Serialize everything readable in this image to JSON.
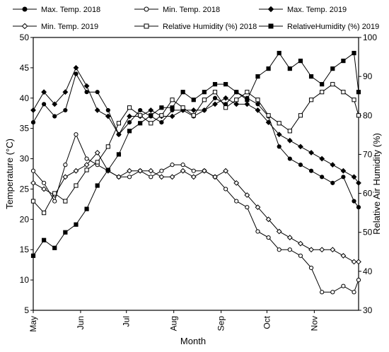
{
  "chart_data": {
    "type": "line",
    "xlabel": "Month",
    "ylabel": "Temperature (°C)",
    "y2label": "Relative Air Humidity (%)",
    "ylim": [
      5,
      50
    ],
    "y2lim": [
      30,
      100
    ],
    "yticks": [
      5,
      10,
      15,
      20,
      25,
      30,
      35,
      40,
      45,
      50
    ],
    "y2ticks": [
      30,
      40,
      50,
      60,
      70,
      80,
      90,
      100
    ],
    "xlim": [
      1,
      214
    ],
    "xticks": [
      {
        "label": "May",
        "day": 1
      },
      {
        "label": "Jun",
        "day": 32
      },
      {
        "label": "Jul",
        "day": 62
      },
      {
        "label": "Aug",
        "day": 93
      },
      {
        "label": "Sep",
        "day": 124
      },
      {
        "label": "Oct",
        "day": 154
      },
      {
        "label": "Nov",
        "day": 185
      }
    ],
    "grid": false,
    "legend_position": "top",
    "series": [
      {
        "name": "Max. Temp. 2018",
        "axis": "left",
        "marker": "circle-filled",
        "days": [
          1,
          8,
          15,
          22,
          29,
          36,
          43,
          50,
          57,
          64,
          71,
          78,
          85,
          92,
          99,
          106,
          113,
          120,
          127,
          134,
          141,
          148,
          155,
          162,
          169,
          176,
          183,
          190,
          197,
          204,
          211,
          214
        ],
        "values": [
          36,
          39,
          37,
          38,
          44,
          41,
          41,
          38,
          34,
          36,
          38,
          37,
          36,
          38,
          38,
          37,
          38,
          40,
          39,
          41,
          40,
          39,
          37,
          32,
          30,
          29,
          28,
          27,
          26,
          27,
          23,
          22
        ]
      },
      {
        "name": "Min. Temp. 2018",
        "axis": "left",
        "marker": "circle-open",
        "days": [
          1,
          8,
          15,
          22,
          29,
          36,
          43,
          50,
          57,
          64,
          71,
          78,
          85,
          92,
          99,
          106,
          113,
          120,
          127,
          134,
          141,
          148,
          155,
          162,
          169,
          176,
          183,
          190,
          197,
          204,
          211,
          214
        ],
        "values": [
          28,
          26,
          23,
          29,
          34,
          30,
          29,
          28,
          27,
          27,
          28,
          27,
          28,
          29,
          29,
          28,
          28,
          27,
          25,
          23,
          22,
          18,
          17,
          15,
          15,
          14,
          12,
          8,
          8,
          9,
          8,
          10
        ]
      },
      {
        "name": "Max. Temp. 2019",
        "axis": "left",
        "marker": "diamond-filled",
        "days": [
          1,
          8,
          15,
          22,
          29,
          36,
          43,
          50,
          57,
          64,
          71,
          78,
          85,
          92,
          99,
          106,
          113,
          120,
          127,
          134,
          141,
          148,
          155,
          162,
          169,
          176,
          183,
          190,
          197,
          204,
          211,
          214
        ],
        "values": [
          38,
          41,
          39,
          41,
          45,
          42,
          38,
          37,
          34,
          37,
          37,
          38,
          37,
          37,
          38,
          38,
          38,
          39,
          40,
          39,
          39,
          38,
          36,
          34,
          33,
          32,
          31,
          30,
          29,
          28,
          27,
          26
        ]
      },
      {
        "name": "Min. Temp. 2019",
        "axis": "left",
        "marker": "diamond-open",
        "days": [
          1,
          8,
          15,
          22,
          29,
          36,
          43,
          50,
          57,
          64,
          71,
          78,
          85,
          92,
          99,
          106,
          113,
          120,
          127,
          134,
          141,
          148,
          155,
          162,
          169,
          176,
          183,
          190,
          197,
          204,
          211,
          214
        ],
        "values": [
          26,
          25,
          24,
          27,
          28,
          29,
          31,
          28,
          27,
          28,
          28,
          28,
          27,
          27,
          28,
          27,
          28,
          27,
          28,
          26,
          24,
          22,
          20,
          18,
          17,
          16,
          15,
          15,
          15,
          14,
          13,
          13
        ]
      },
      {
        "name": "Relative Humidity (%) 2018",
        "axis": "right",
        "marker": "square-open",
        "days": [
          1,
          8,
          15,
          22,
          29,
          36,
          43,
          50,
          57,
          64,
          71,
          78,
          85,
          92,
          99,
          106,
          113,
          120,
          127,
          134,
          141,
          148,
          155,
          162,
          169,
          176,
          183,
          190,
          197,
          204,
          211,
          214
        ],
        "values": [
          58,
          55,
          60,
          58,
          62,
          66,
          68,
          72,
          78,
          82,
          80,
          78,
          80,
          84,
          82,
          80,
          84,
          86,
          82,
          84,
          86,
          84,
          80,
          78,
          76,
          80,
          84,
          86,
          88,
          86,
          84,
          80
        ]
      },
      {
        "name": "RelativeHumidity (%) 2019",
        "axis": "right",
        "marker": "square-filled",
        "days": [
          1,
          8,
          15,
          22,
          29,
          36,
          43,
          50,
          57,
          64,
          71,
          78,
          85,
          92,
          99,
          106,
          113,
          120,
          127,
          134,
          141,
          148,
          155,
          162,
          169,
          176,
          183,
          190,
          197,
          204,
          211,
          214
        ],
        "values": [
          44,
          48,
          46,
          50,
          52,
          56,
          62,
          66,
          70,
          76,
          78,
          80,
          82,
          82,
          86,
          84,
          86,
          88,
          88,
          86,
          84,
          90,
          92,
          96,
          92,
          94,
          90,
          88,
          92,
          94,
          96,
          86
        ]
      }
    ]
  }
}
